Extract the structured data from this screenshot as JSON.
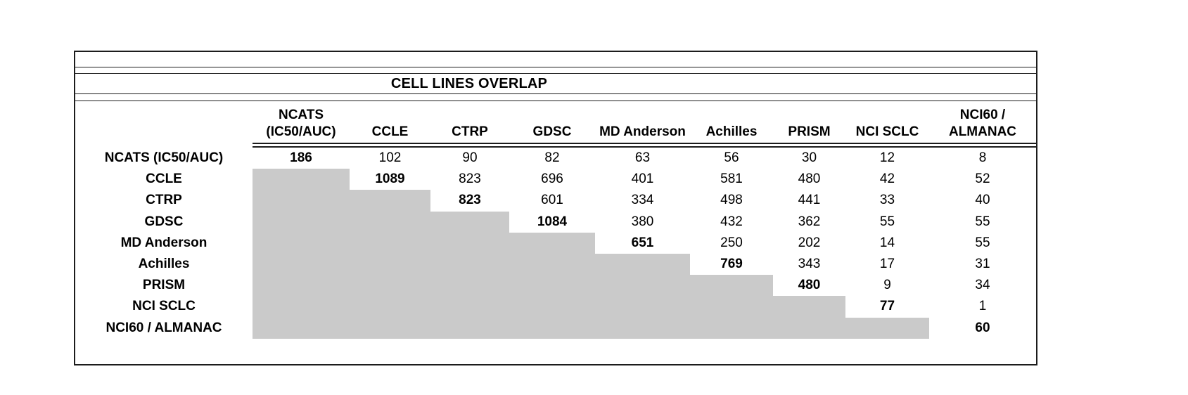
{
  "chart_data": {
    "type": "table",
    "title": "CELL LINES OVERLAP",
    "row_labels": [
      "NCATS (IC50/AUC)",
      "CCLE",
      "CTRP",
      "GDSC",
      "MD Anderson",
      "Achilles",
      "PRISM",
      "NCI SCLC",
      "NCI60 / ALMANAC"
    ],
    "col_labels": [
      "NCATS\n(IC50/AUC)",
      "CCLE",
      "CTRP",
      "GDSC",
      "MD Anderson",
      "Achilles",
      "PRISM",
      "NCI SCLC",
      "NCI60 /\nALMANAC"
    ],
    "matrix": [
      [
        186,
        102,
        90,
        82,
        63,
        56,
        30,
        12,
        8
      ],
      [
        null,
        1089,
        823,
        696,
        401,
        581,
        480,
        42,
        52
      ],
      [
        null,
        null,
        823,
        601,
        334,
        498,
        441,
        33,
        40
      ],
      [
        null,
        null,
        null,
        1084,
        380,
        432,
        362,
        55,
        55
      ],
      [
        null,
        null,
        null,
        null,
        651,
        250,
        202,
        14,
        55
      ],
      [
        null,
        null,
        null,
        null,
        null,
        769,
        343,
        17,
        31
      ],
      [
        null,
        null,
        null,
        null,
        null,
        null,
        480,
        9,
        34
      ],
      [
        null,
        null,
        null,
        null,
        null,
        null,
        null,
        77,
        1
      ],
      [
        null,
        null,
        null,
        null,
        null,
        null,
        null,
        null,
        60
      ]
    ],
    "diagonal_bold": true,
    "lower_triangle": "shaded",
    "layout_hints": {
      "legend": "none",
      "grid": "off"
    }
  },
  "colors": {
    "shaded_cell": "#CACACA",
    "border": "#1C1C1C",
    "text": "#000000",
    "background": "#FFFFFF"
  }
}
